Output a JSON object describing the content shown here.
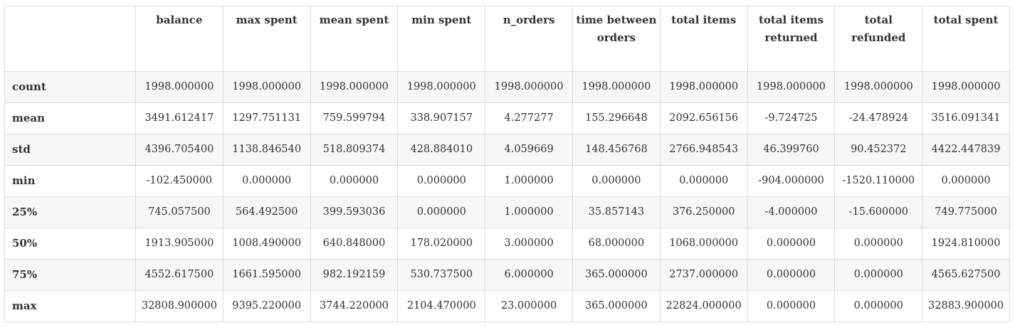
{
  "table": {
    "index_header": "",
    "columns": [
      "balance",
      "max spent",
      "mean spent",
      "min spent",
      "n_orders",
      "time between orders",
      "total items",
      "total items returned",
      "total refunded",
      "total spent"
    ],
    "rows": [
      {
        "label": "count",
        "values": [
          "1998.000000",
          "1998.000000",
          "1998.000000",
          "1998.000000",
          "1998.000000",
          "1998.000000",
          "1998.000000",
          "1998.000000",
          "1998.000000",
          "1998.000000"
        ]
      },
      {
        "label": "mean",
        "values": [
          "3491.612417",
          "1297.751131",
          "759.599794",
          "338.907157",
          "4.277277",
          "155.296648",
          "2092.656156",
          "-9.724725",
          "-24.478924",
          "3516.091341"
        ]
      },
      {
        "label": "std",
        "values": [
          "4396.705400",
          "1138.846540",
          "518.809374",
          "428.884010",
          "4.059669",
          "148.456768",
          "2766.948543",
          "46.399760",
          "90.452372",
          "4422.447839"
        ]
      },
      {
        "label": "min",
        "values": [
          "-102.450000",
          "0.000000",
          "0.000000",
          "0.000000",
          "1.000000",
          "0.000000",
          "0.000000",
          "-904.000000",
          "-1520.110000",
          "0.000000"
        ]
      },
      {
        "label": "25%",
        "values": [
          "745.057500",
          "564.492500",
          "399.593036",
          "0.000000",
          "1.000000",
          "35.857143",
          "376.250000",
          "-4.000000",
          "-15.600000",
          "749.775000"
        ]
      },
      {
        "label": "50%",
        "values": [
          "1913.905000",
          "1008.490000",
          "640.848000",
          "178.020000",
          "3.000000",
          "68.000000",
          "1068.000000",
          "0.000000",
          "0.000000",
          "1924.810000"
        ]
      },
      {
        "label": "75%",
        "values": [
          "4552.617500",
          "1661.595000",
          "982.192159",
          "530.737500",
          "6.000000",
          "365.000000",
          "2737.000000",
          "0.000000",
          "0.000000",
          "4565.627500"
        ]
      },
      {
        "label": "max",
        "values": [
          "32808.900000",
          "9395.220000",
          "3744.220000",
          "2104.470000",
          "23.000000",
          "365.000000",
          "22824.000000",
          "0.000000",
          "0.000000",
          "32883.900000"
        ]
      }
    ]
  }
}
